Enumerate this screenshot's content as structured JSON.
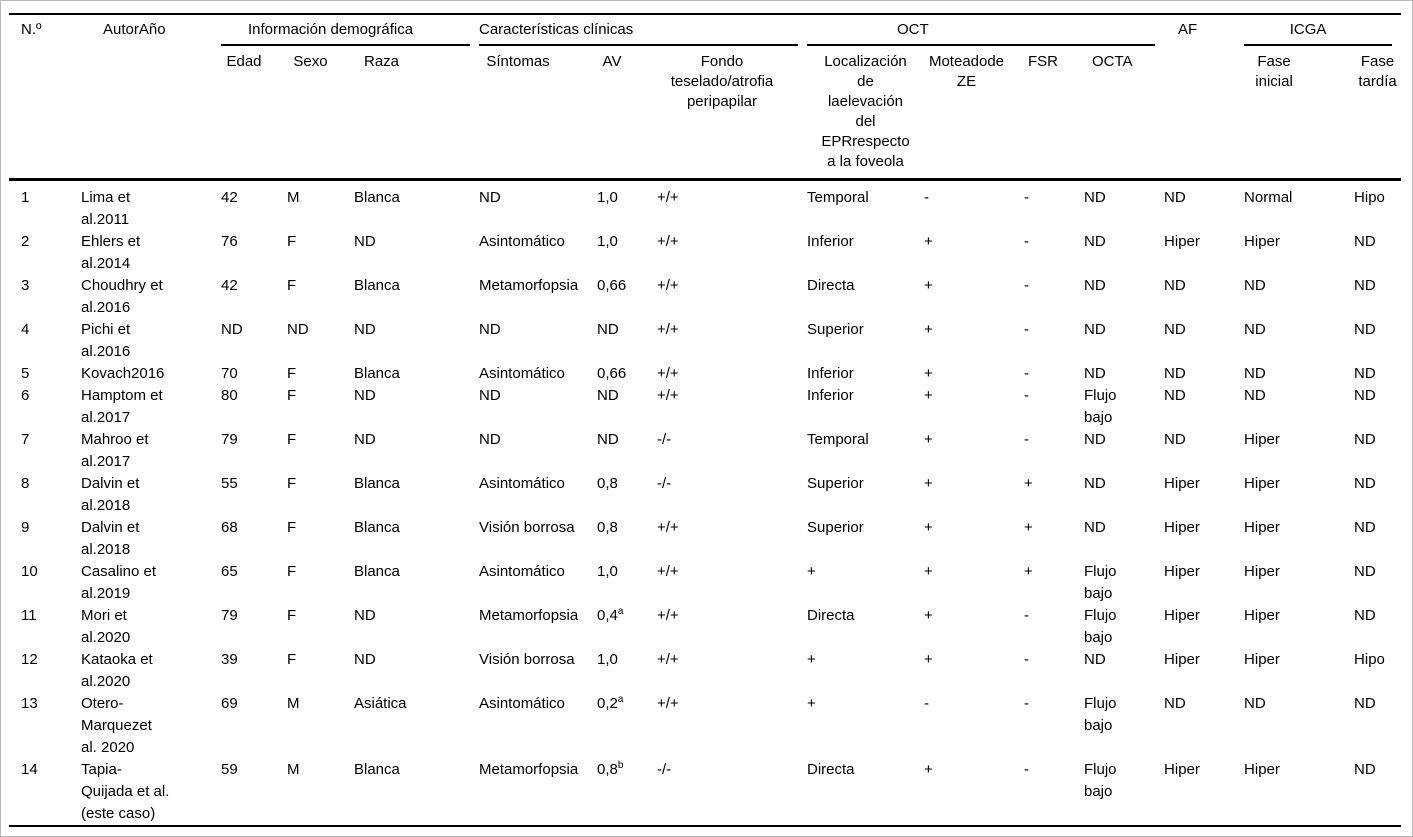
{
  "table": {
    "header": {
      "no": "N.º",
      "author": "AutorAño",
      "groups": {
        "demographic": "Información demográfica",
        "clinical": "Características clínicas",
        "oct": "OCT",
        "af": "AF",
        "icga": "ICGA"
      },
      "sub": {
        "edad": "Edad",
        "sexo": "Sexo",
        "raza": "Raza",
        "sintomas": "Síntomas",
        "av": "AV",
        "fondo": "Fondo\nteselado/atrofia\nperipapilar",
        "localizacion": "Localización\nde\nlaelevación\ndel\nEPRrespecto\na la foveola",
        "moteado": "Moteadode\nZE",
        "fsr": "FSR",
        "octa": "OCTA",
        "fase_inicial": "Fase\ninicial",
        "fase_tardia": "Fase\ntardía"
      }
    },
    "rows": [
      [
        "1",
        "Lima et\nal.2011",
        "42",
        "M",
        "Blanca",
        "ND",
        "1,0",
        "+/+",
        "Temporal",
        "-",
        "-",
        "ND",
        "ND",
        "Normal",
        "Hipo"
      ],
      [
        "2",
        "Ehlers et\nal.2014",
        "76",
        "F",
        "ND",
        "Asintomático",
        "1,0",
        "+/+",
        "Inferior",
        "+",
        "-",
        "ND",
        "Hiper",
        "Hiper",
        "ND"
      ],
      [
        "3",
        "Choudhry et\nal.2016",
        "42",
        "F",
        "Blanca",
        "Metamorfopsia",
        "0,66",
        "+/+",
        "Directa",
        "+",
        "-",
        "ND",
        "ND",
        "ND",
        "ND"
      ],
      [
        "4",
        "Pichi et\nal.2016",
        "ND",
        "ND",
        "ND",
        "ND",
        "ND",
        "+/+",
        "Superior",
        "+",
        "-",
        "ND",
        "ND",
        "ND",
        "ND"
      ],
      [
        "5",
        "Kovach2016",
        "70",
        "F",
        "Blanca",
        "Asintomático",
        "0,66",
        "+/+",
        "Inferior",
        "+",
        "-",
        "ND",
        "ND",
        "ND",
        "ND"
      ],
      [
        "6",
        "Hamptom et\nal.2017",
        "80",
        "F",
        "ND",
        "ND",
        "ND",
        "+/+",
        "Inferior",
        "+",
        "-",
        "Flujo\nbajo",
        "ND",
        "ND",
        "ND"
      ],
      [
        "7",
        "Mahroo et\nal.2017",
        "79",
        "F",
        "ND",
        "ND",
        "ND",
        "-/-",
        "Temporal",
        "+",
        "-",
        "ND",
        "ND",
        "Hiper",
        "ND"
      ],
      [
        "8",
        "Dalvin et\nal.2018",
        "55",
        "F",
        "Blanca",
        "Asintomático",
        "0,8",
        "-/-",
        "Superior",
        "+",
        "+",
        "ND",
        "Hiper",
        "Hiper",
        "ND"
      ],
      [
        "9",
        "Dalvin et\nal.2018",
        "68",
        "F",
        "Blanca",
        "Visión borrosa",
        "0,8",
        "+/+",
        "Superior",
        "+",
        "+",
        "ND",
        "Hiper",
        "Hiper",
        "ND"
      ],
      [
        "10",
        "Casalino et\nal.2019",
        "65",
        "F",
        "Blanca",
        "Asintomático",
        "1,0",
        "+/+",
        "+",
        "+",
        "+",
        "Flujo\nbajo",
        "Hiper",
        "Hiper",
        "ND"
      ],
      [
        "11",
        "Mori et\nal.2020",
        "79",
        "F",
        "ND",
        "Metamorfopsia",
        "0,4^a",
        "+/+",
        "Directa",
        "+",
        "-",
        "Flujo\nbajo",
        "Hiper",
        "Hiper",
        "ND"
      ],
      [
        "12",
        "Kataoka et\nal.2020",
        "39",
        "F",
        "ND",
        "Visión borrosa",
        "1,0",
        "+/+",
        "+",
        "+",
        "-",
        "ND",
        "Hiper",
        "Hiper",
        "Hipo"
      ],
      [
        "13",
        "Otero-\nMarquezet\nal. 2020",
        "69",
        "M",
        "Asiática",
        "Asintomático",
        "0,2^a",
        "+/+",
        "+",
        "-",
        "-",
        "Flujo\nbajo",
        "ND",
        "ND",
        "ND"
      ],
      [
        "14",
        "Tapia-\nQuijada et al.\n(este caso)",
        "59",
        "M",
        "Blanca",
        "Metamorfopsia",
        "0,8^b",
        "-/-",
        "Directa",
        "+",
        "-",
        "Flujo\nbajo",
        "Hiper",
        "Hiper",
        "ND"
      ]
    ]
  },
  "colors": {
    "background": "#ffffff",
    "text": "#000000",
    "rules": "#000000",
    "frame_border": "#b5b5b5"
  }
}
